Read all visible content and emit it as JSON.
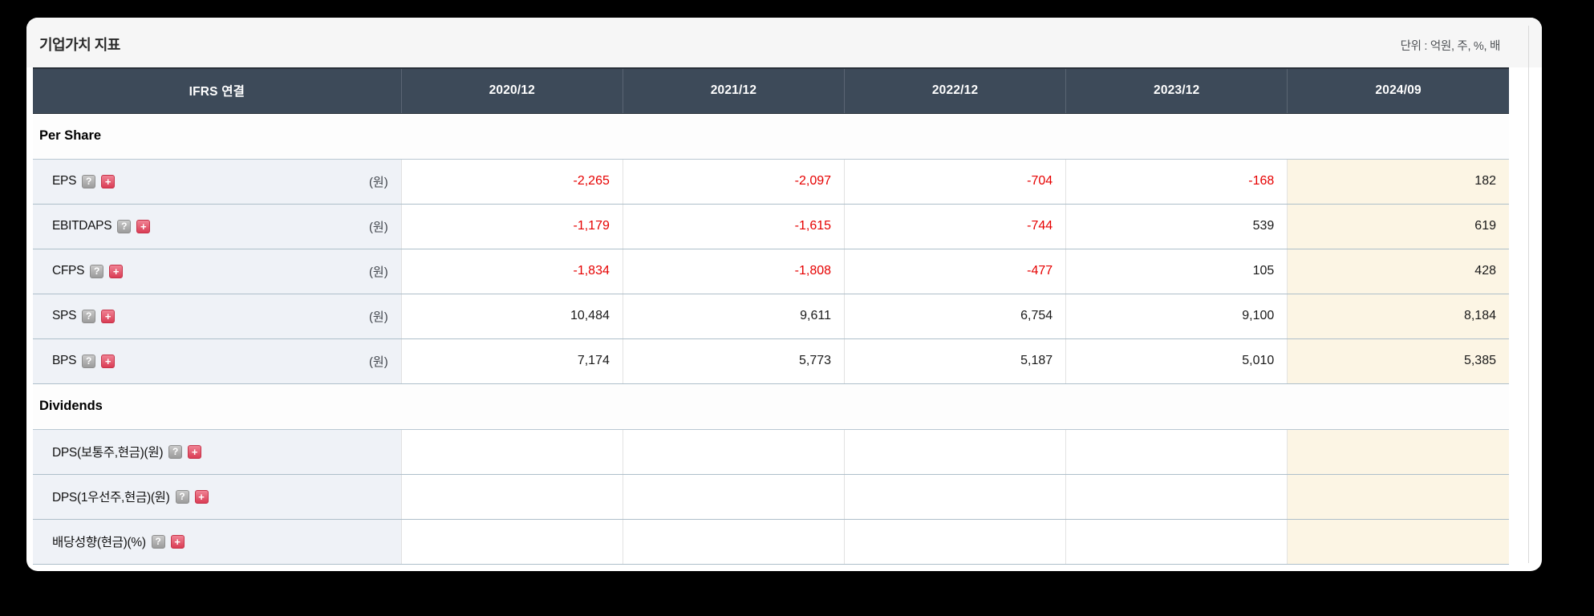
{
  "page": {
    "title": "기업가치 지표",
    "unit_note": "단위 : 억원, 주, %, 배"
  },
  "table": {
    "header": {
      "label": "IFRS 연결",
      "columns": [
        "2020/12",
        "2021/12",
        "2022/12",
        "2023/12",
        "2024/09"
      ]
    },
    "icons": {
      "help": "?",
      "expand": "+"
    },
    "colors": {
      "negative": "#e60000",
      "header_bg": "#3d4a59",
      "label_bg": "#eff2f7",
      "latest_col_bg": "#fcf5e4"
    },
    "sections": [
      {
        "title": "Per Share",
        "rows": [
          {
            "label": "EPS",
            "unit": "(원)",
            "values": [
              "-2,265",
              "-2,097",
              "-704",
              "-168",
              "182"
            ]
          },
          {
            "label": "EBITDAPS",
            "unit": "(원)",
            "values": [
              "-1,179",
              "-1,615",
              "-744",
              "539",
              "619"
            ]
          },
          {
            "label": "CFPS",
            "unit": "(원)",
            "values": [
              "-1,834",
              "-1,808",
              "-477",
              "105",
              "428"
            ]
          },
          {
            "label": "SPS",
            "unit": "(원)",
            "values": [
              "10,484",
              "9,611",
              "6,754",
              "9,100",
              "8,184"
            ]
          },
          {
            "label": "BPS",
            "unit": "(원)",
            "values": [
              "7,174",
              "5,773",
              "5,187",
              "5,010",
              "5,385"
            ]
          }
        ]
      },
      {
        "title": "Dividends",
        "rows": [
          {
            "label": "DPS(보통주,현금)(원)",
            "unit": "",
            "values": [
              "",
              "",
              "",
              "",
              ""
            ]
          },
          {
            "label": "DPS(1우선주,현금)(원)",
            "unit": "",
            "values": [
              "",
              "",
              "",
              "",
              ""
            ]
          },
          {
            "label": "배당성향(현금)(%)",
            "unit": "",
            "values": [
              "",
              "",
              "",
              "",
              ""
            ]
          }
        ]
      }
    ]
  }
}
